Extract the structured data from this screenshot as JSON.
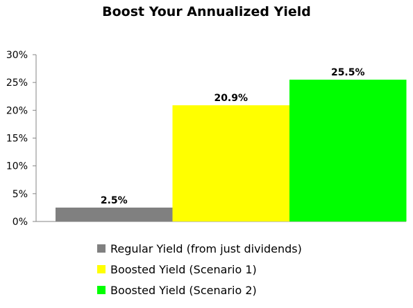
{
  "chart_data": {
    "type": "bar",
    "title": "Boost Your Annualized Yield",
    "categories": [
      "Regular Yield (from just dividends)",
      "Boosted Yield (Scenario 1)",
      "Boosted Yield (Scenario 2)"
    ],
    "values": [
      2.5,
      20.9,
      25.5
    ],
    "value_labels": [
      "2.5%",
      "20.9%",
      "25.5%"
    ],
    "colors": [
      "#808080",
      "#ffff00",
      "#00ff00"
    ],
    "ylim": [
      0,
      30
    ],
    "yticks": [
      0,
      5,
      10,
      15,
      20,
      25,
      30
    ],
    "ytick_labels": [
      "0%",
      "5%",
      "10%",
      "15%",
      "20%",
      "25%",
      "30%"
    ],
    "xlabel": "",
    "ylabel": "",
    "grid": false,
    "legend_position": "bottom"
  }
}
